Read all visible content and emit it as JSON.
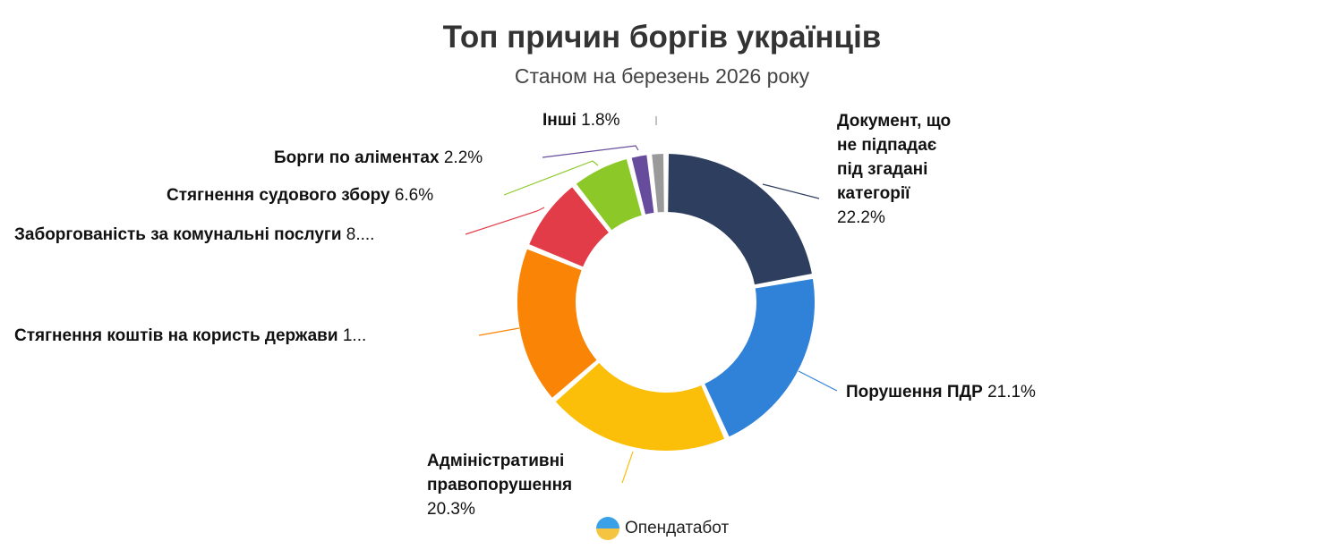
{
  "chart_data": {
    "type": "pie",
    "title": "Топ причин боргів українців",
    "subtitle": "Станом на березень 2026 року",
    "donut": true,
    "slices": [
      {
        "label": "Документ, що не підпадає під згадані категорії",
        "display_pct": "22.2%",
        "value": 22.2,
        "color": "#2e3e5e"
      },
      {
        "label": "Порушення ПДР",
        "display_pct": "21.1%",
        "value": 21.1,
        "color": "#2f82d8"
      },
      {
        "label": "Адміністративні правопорушення",
        "display_pct": "20.3%",
        "value": 20.3,
        "color": "#fbbf0a"
      },
      {
        "label": "Стягнення коштів на користь держави",
        "display_pct": "1...",
        "value": 17.5,
        "color": "#f98405"
      },
      {
        "label": "Заборгованість за комунальні послуги",
        "display_pct": "8....",
        "value": 8.3,
        "color": "#e23c49"
      },
      {
        "label": "Стягнення судового збору",
        "display_pct": "6.6%",
        "value": 6.6,
        "color": "#8cc928"
      },
      {
        "label": "Борги по аліментах",
        "display_pct": "2.2%",
        "value": 2.2,
        "color": "#674b9c"
      },
      {
        "label": "Інші",
        "display_pct": "1.8%",
        "value": 1.8,
        "color": "#9a9a9a"
      }
    ]
  },
  "brand": "Опендатабот"
}
